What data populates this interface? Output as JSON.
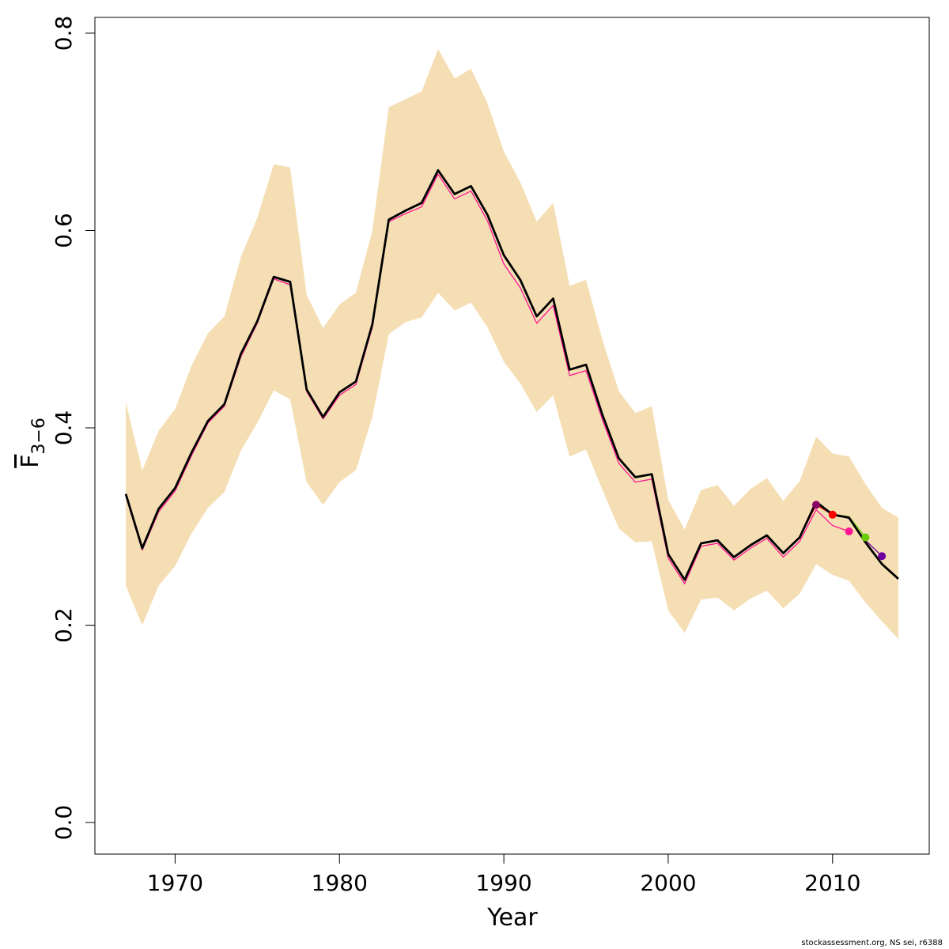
{
  "chart_data": {
    "type": "line",
    "xlabel": "Year",
    "ylabel": "F",
    "ylabel_sub": "3−6",
    "footer": "stockassessment.org, NS sei, r6388",
    "x": [
      1967,
      1968,
      1969,
      1970,
      1971,
      1972,
      1973,
      1974,
      1975,
      1976,
      1977,
      1978,
      1979,
      1980,
      1981,
      1982,
      1983,
      1984,
      1985,
      1986,
      1987,
      1988,
      1989,
      1990,
      1991,
      1992,
      1993,
      1994,
      1995,
      1996,
      1997,
      1998,
      1999,
      2000,
      2001,
      2002,
      2003,
      2004,
      2005,
      2006,
      2007,
      2008,
      2009,
      2010,
      2011,
      2012,
      2013,
      2014
    ],
    "xlim": [
      1965.12,
      2015.88
    ],
    "xticks": [
      1970,
      1980,
      1990,
      2000,
      2010
    ],
    "ylim": [
      -0.032,
      0.816
    ],
    "yticks": [
      {
        "value": 0,
        "label": "0.0"
      },
      0.2,
      0.4,
      0.6,
      0.8
    ],
    "band": {
      "color": "#f5deb3",
      "lower": [
        0.24,
        0.2,
        0.24,
        0.26,
        0.293,
        0.319,
        0.335,
        0.377,
        0.405,
        0.438,
        0.429,
        0.345,
        0.322,
        0.345,
        0.357,
        0.411,
        0.495,
        0.507,
        0.512,
        0.537,
        0.519,
        0.527,
        0.502,
        0.467,
        0.445,
        0.416,
        0.433,
        0.371,
        0.378,
        0.337,
        0.298,
        0.284,
        0.285,
        0.215,
        0.192,
        0.226,
        0.228,
        0.215,
        0.227,
        0.235,
        0.217,
        0.232,
        0.262,
        0.251,
        0.245,
        0.223,
        0.204,
        0.186
      ],
      "upper": [
        0.426,
        0.357,
        0.397,
        0.419,
        0.463,
        0.496,
        0.513,
        0.573,
        0.613,
        0.667,
        0.664,
        0.535,
        0.501,
        0.525,
        0.537,
        0.6,
        0.725,
        0.733,
        0.741,
        0.784,
        0.754,
        0.764,
        0.729,
        0.68,
        0.649,
        0.609,
        0.628,
        0.544,
        0.55,
        0.489,
        0.437,
        0.415,
        0.422,
        0.327,
        0.297,
        0.337,
        0.342,
        0.321,
        0.338,
        0.349,
        0.326,
        0.346,
        0.391,
        0.374,
        0.371,
        0.343,
        0.319,
        0.309
      ]
    },
    "series": [
      {
        "color": "#8b0064",
        "end_marker": true,
        "values": [
          0.333,
          0.278,
          0.318,
          0.339,
          0.375,
          0.407,
          0.424,
          0.475,
          0.508,
          0.553,
          0.548,
          0.439,
          0.411,
          0.436,
          0.447,
          0.505,
          0.611,
          0.62,
          0.628,
          0.661,
          0.637,
          0.645,
          0.616,
          0.575,
          0.55,
          0.513,
          0.531,
          0.459,
          0.464,
          0.413,
          0.369,
          0.35,
          0.353,
          0.272,
          0.246,
          0.283,
          0.286,
          0.269,
          0.281,
          0.291,
          0.273,
          0.289,
          0.322,
          null,
          null,
          null,
          null,
          null
        ]
      },
      {
        "color": "#ff0000",
        "end_marker": true,
        "values": [
          0.333,
          0.278,
          0.318,
          0.339,
          0.375,
          0.407,
          0.424,
          0.475,
          0.508,
          0.553,
          0.548,
          0.439,
          0.411,
          0.436,
          0.447,
          0.505,
          0.611,
          0.62,
          0.628,
          0.661,
          0.637,
          0.645,
          0.616,
          0.575,
          0.55,
          0.513,
          0.531,
          0.459,
          0.464,
          0.413,
          0.369,
          0.35,
          0.353,
          0.272,
          0.246,
          0.283,
          0.286,
          0.269,
          0.281,
          0.291,
          0.273,
          0.289,
          0.322,
          0.312,
          null,
          null,
          null,
          null
        ]
      },
      {
        "color": "#ff1493",
        "end_marker": true,
        "values": [
          0.331,
          0.276,
          0.315,
          0.336,
          0.372,
          0.405,
          0.422,
          0.472,
          0.506,
          0.551,
          0.545,
          0.437,
          0.409,
          0.433,
          0.444,
          0.502,
          0.609,
          0.617,
          0.624,
          0.657,
          0.632,
          0.64,
          0.61,
          0.566,
          0.542,
          0.506,
          0.524,
          0.453,
          0.458,
          0.408,
          0.364,
          0.345,
          0.348,
          0.268,
          0.242,
          0.28,
          0.283,
          0.266,
          0.278,
          0.288,
          0.269,
          0.285,
          0.317,
          0.301,
          0.295,
          null,
          null,
          null
        ]
      },
      {
        "color": "#66cc00",
        "end_marker": true,
        "values": [
          0.333,
          0.278,
          0.318,
          0.339,
          0.375,
          0.407,
          0.424,
          0.475,
          0.508,
          0.553,
          0.548,
          0.439,
          0.411,
          0.436,
          0.447,
          0.505,
          0.611,
          0.62,
          0.628,
          0.661,
          0.637,
          0.645,
          0.616,
          0.575,
          0.55,
          0.513,
          0.531,
          0.459,
          0.464,
          0.413,
          0.369,
          0.35,
          0.353,
          0.272,
          0.246,
          0.283,
          0.286,
          0.269,
          0.281,
          0.291,
          0.273,
          0.289,
          0.324,
          0.312,
          0.31,
          0.289,
          null,
          null
        ]
      },
      {
        "color": "#7000a0",
        "end_marker": true,
        "values": [
          0.333,
          0.278,
          0.318,
          0.339,
          0.375,
          0.407,
          0.424,
          0.475,
          0.508,
          0.553,
          0.548,
          0.439,
          0.411,
          0.436,
          0.447,
          0.505,
          0.611,
          0.62,
          0.628,
          0.661,
          0.637,
          0.645,
          0.616,
          0.575,
          0.55,
          0.513,
          0.531,
          0.459,
          0.464,
          0.413,
          0.369,
          0.35,
          0.353,
          0.272,
          0.246,
          0.283,
          0.286,
          0.269,
          0.281,
          0.291,
          0.273,
          0.289,
          0.325,
          0.313,
          0.308,
          0.286,
          0.27,
          null
        ]
      },
      {
        "color": "#000000",
        "end_marker": false,
        "values": [
          0.333,
          0.278,
          0.318,
          0.339,
          0.375,
          0.407,
          0.424,
          0.475,
          0.508,
          0.553,
          0.548,
          0.439,
          0.411,
          0.436,
          0.447,
          0.505,
          0.611,
          0.62,
          0.628,
          0.661,
          0.637,
          0.645,
          0.616,
          0.575,
          0.55,
          0.513,
          0.531,
          0.459,
          0.464,
          0.413,
          0.369,
          0.35,
          0.353,
          0.272,
          0.246,
          0.283,
          0.286,
          0.269,
          0.281,
          0.291,
          0.273,
          0.289,
          0.325,
          0.312,
          0.309,
          0.284,
          0.262,
          0.247
        ]
      }
    ]
  }
}
